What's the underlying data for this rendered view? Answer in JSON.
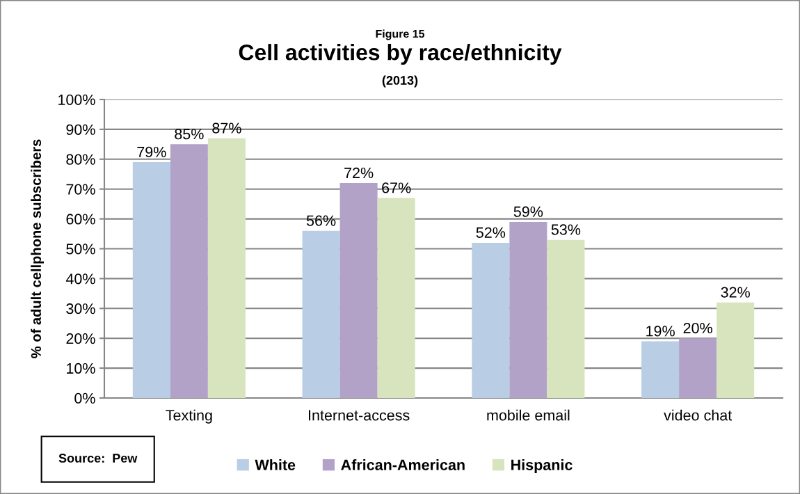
{
  "chart_data": {
    "type": "bar",
    "title": "Cell activities by race/ethnicity",
    "subtitle": "(2013)",
    "ylabel": "% of adult cellphone subscribers",
    "annotations": [
      "Figure 15",
      "Source:  Pew"
    ],
    "categories": [
      "Texting",
      "Internet-access",
      "mobile email",
      "video chat"
    ],
    "series": [
      {
        "name": "White",
        "color": "#b9cde5",
        "values": [
          79,
          56,
          52,
          19
        ],
        "value_labels": [
          "79%",
          "56%",
          "52%",
          "19%"
        ]
      },
      {
        "name": "African-American",
        "color": "#b3a2c7",
        "values": [
          85,
          72,
          59,
          20
        ],
        "value_labels": [
          "85%",
          "72%",
          "59%",
          "20%"
        ]
      },
      {
        "name": "Hispanic",
        "color": "#d7e4bd",
        "values": [
          87,
          67,
          53,
          32
        ],
        "value_labels": [
          "87%",
          "67%",
          "53%",
          "32%"
        ]
      }
    ],
    "ylim": [
      0,
      100
    ],
    "yticks": [
      {
        "value": 0,
        "label": "0%"
      },
      {
        "value": 10,
        "label": "10%"
      },
      {
        "value": 20,
        "label": "20%"
      },
      {
        "value": 30,
        "label": "30%"
      },
      {
        "value": 40,
        "label": "40%"
      },
      {
        "value": 50,
        "label": "50%"
      },
      {
        "value": 60,
        "label": "60%"
      },
      {
        "value": 70,
        "label": "70%"
      },
      {
        "value": 80,
        "label": "80%"
      },
      {
        "value": 90,
        "label": "90%"
      },
      {
        "value": 100,
        "label": "100%"
      }
    ],
    "grid": "y",
    "legend": "bottom"
  }
}
